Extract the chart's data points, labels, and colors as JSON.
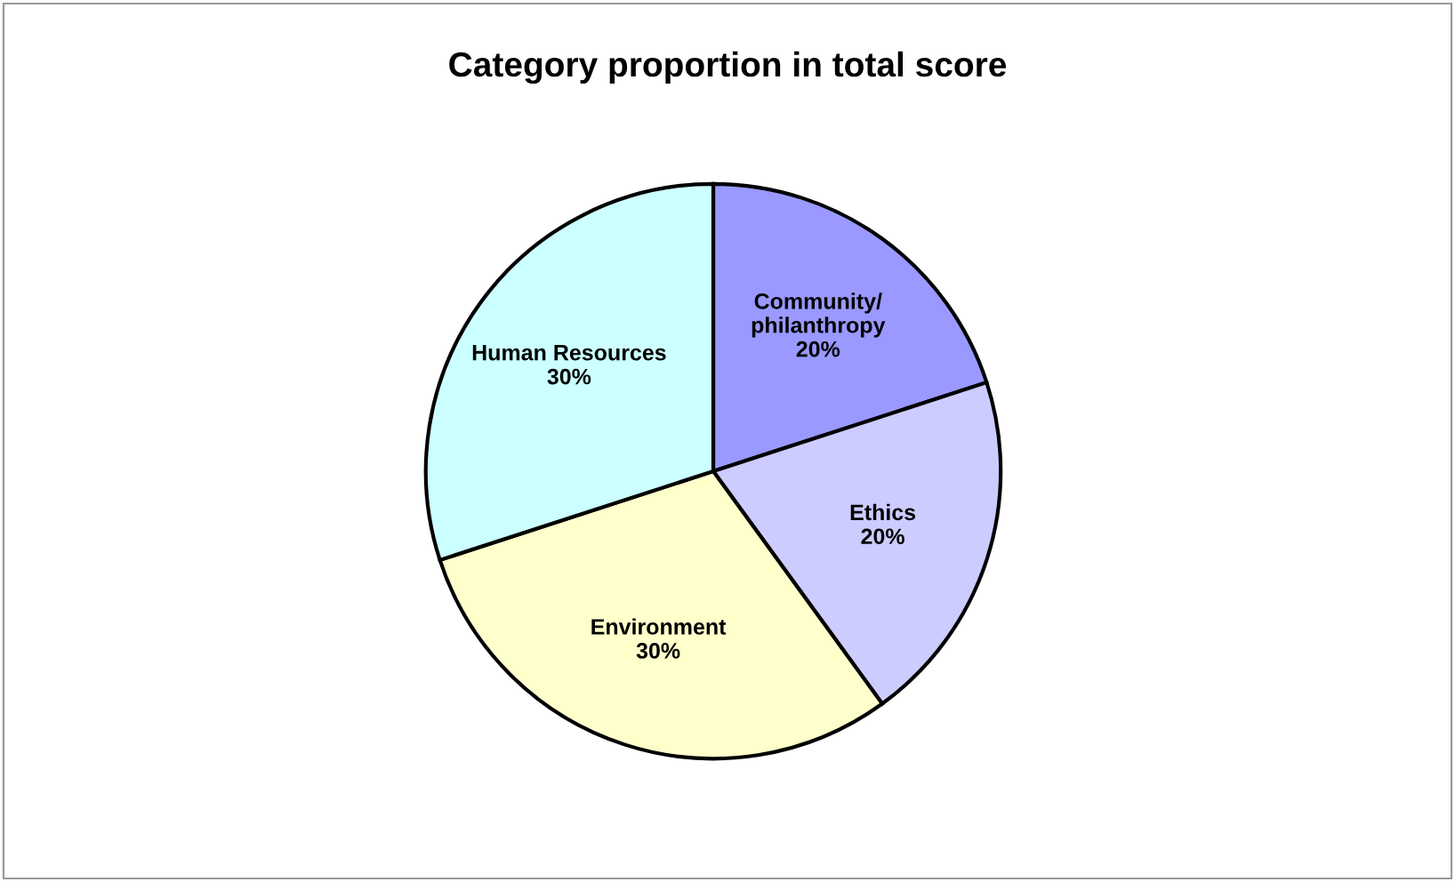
{
  "chart_data": {
    "type": "pie",
    "title": "Category proportion in total score",
    "categories": [
      "Community/\nphilanthropy",
      "Ethics",
      "Environment",
      "Human Resources"
    ],
    "values": [
      20,
      20,
      30,
      30
    ],
    "value_labels": [
      "20%",
      "20%",
      "30%",
      "30%"
    ],
    "colors": [
      "#9999ff",
      "#ccccff",
      "#ffffcc",
      "#ccffff"
    ],
    "legend": false
  }
}
